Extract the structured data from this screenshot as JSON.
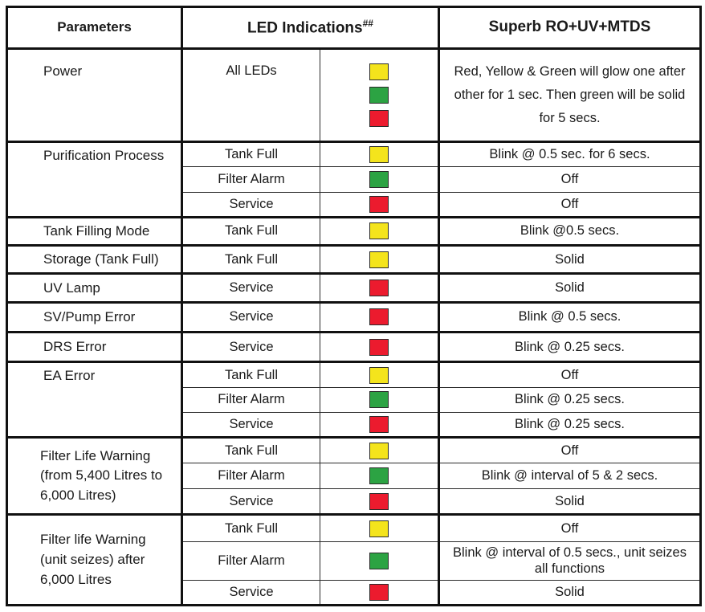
{
  "header": {
    "parameters": "Parameters",
    "led_indications": "LED Indications",
    "led_sup": "##",
    "product": "Superb RO+UV+MTDS"
  },
  "colors": {
    "yellow": "#F4E41C",
    "green": "#2CA343",
    "red": "#EC1B2E"
  },
  "groups": [
    {
      "parameter": "Power",
      "rows": [
        {
          "led_label": "All LEDs",
          "leds": [
            "yellow",
            "green",
            "red"
          ],
          "behavior": "Red, Yellow & Green will glow one after other for 1 sec. Then green will be solid for 5 secs."
        }
      ]
    },
    {
      "parameter": "Purification Process",
      "rows": [
        {
          "led_label": "Tank Full",
          "leds": [
            "yellow"
          ],
          "behavior": "Blink @ 0.5 sec. for 6 secs."
        },
        {
          "led_label": "Filter Alarm",
          "leds": [
            "green"
          ],
          "behavior": "Off"
        },
        {
          "led_label": "Service",
          "leds": [
            "red"
          ],
          "behavior": "Off"
        }
      ]
    },
    {
      "parameter": "Tank Filling Mode",
      "rows": [
        {
          "led_label": "Tank Full",
          "leds": [
            "yellow"
          ],
          "behavior": "Blink @0.5 secs."
        }
      ]
    },
    {
      "parameter": "Storage (Tank Full)",
      "rows": [
        {
          "led_label": "Tank Full",
          "leds": [
            "yellow"
          ],
          "behavior": "Solid"
        }
      ]
    },
    {
      "parameter": "UV Lamp",
      "rows": [
        {
          "led_label": "Service",
          "leds": [
            "red"
          ],
          "behavior": "Solid"
        }
      ]
    },
    {
      "parameter": "SV/Pump Error",
      "rows": [
        {
          "led_label": "Service",
          "leds": [
            "red"
          ],
          "behavior": "Blink @ 0.5 secs."
        }
      ]
    },
    {
      "parameter": "DRS Error",
      "rows": [
        {
          "led_label": "Service",
          "leds": [
            "red"
          ],
          "behavior": "Blink @ 0.25 secs."
        }
      ]
    },
    {
      "parameter": "EA Error",
      "rows": [
        {
          "led_label": "Tank Full",
          "leds": [
            "yellow"
          ],
          "behavior": "Off"
        },
        {
          "led_label": "Filter Alarm",
          "leds": [
            "green"
          ],
          "behavior": "Blink @ 0.25 secs."
        },
        {
          "led_label": "Service",
          "leds": [
            "red"
          ],
          "behavior": "Blink @ 0.25 secs."
        }
      ]
    },
    {
      "parameter": "Filter Life Warning (from 5,400 Litres to 6,000 Litres)",
      "rows": [
        {
          "led_label": "Tank Full",
          "leds": [
            "yellow"
          ],
          "behavior": "Off"
        },
        {
          "led_label": "Filter Alarm",
          "leds": [
            "green"
          ],
          "behavior": "Blink @ interval of 5 & 2 secs."
        },
        {
          "led_label": "Service",
          "leds": [
            "red"
          ],
          "behavior": "Solid"
        }
      ]
    },
    {
      "parameter": "Filter life Warning (unit seizes) after 6,000 Litres",
      "rows": [
        {
          "led_label": "Tank Full",
          "leds": [
            "yellow"
          ],
          "behavior": "Off"
        },
        {
          "led_label": "Filter Alarm",
          "leds": [
            "green"
          ],
          "behavior": "Blink @ interval of 0.5 secs., unit seizes all functions"
        },
        {
          "led_label": "Service",
          "leds": [
            "red"
          ],
          "behavior": "Solid"
        }
      ]
    }
  ]
}
